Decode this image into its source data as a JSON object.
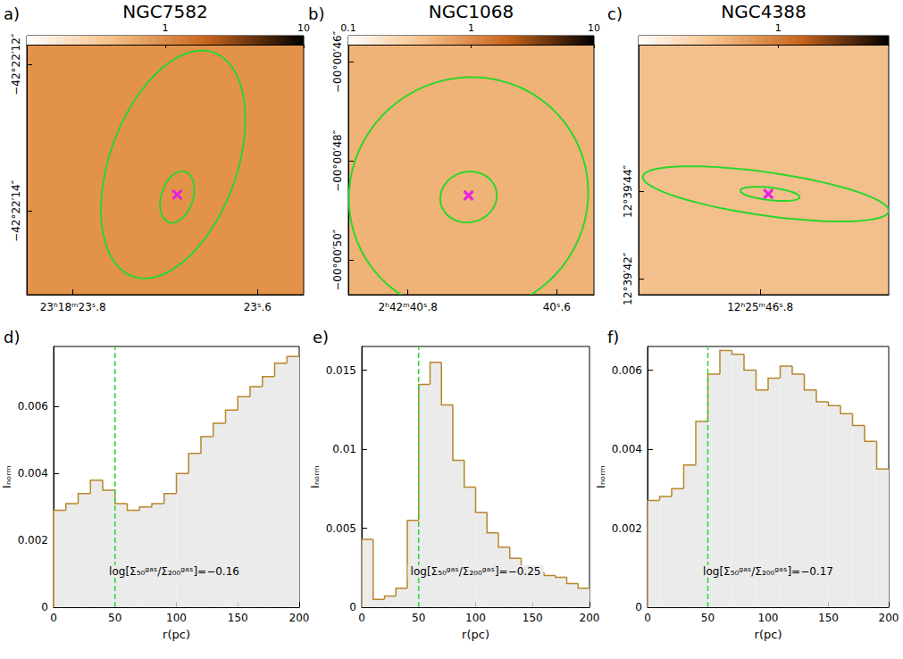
{
  "chart_data": [
    {
      "type": "image",
      "panel": "a)",
      "title": "NGC7582",
      "color": "#e3924a",
      "xlim": [
        23.85,
        23.55
      ],
      "xticks": [
        {
          "value": 23.8,
          "label": "23ʰ18ᵐ23ˢ.8"
        },
        {
          "value": 23.6,
          "label": "23ˢ.6"
        }
      ],
      "ylim": [
        -15.14,
        -11.73
      ],
      "yticks": [
        {
          "value": -14,
          "label": "−42°22′14″"
        },
        {
          "value": -12,
          "label": "−42°22′12″"
        }
      ],
      "colorbar": {
        "range": [
          0.1,
          10
        ],
        "ticks": [
          1,
          10
        ],
        "log": true
      },
      "apertures": [
        {
          "center": [
            23.6914,
            -13.3646
          ],
          "major_end": [
            23.6474,
            -11.838
          ],
          "minor_end": [
            23.6267,
            -13.657
          ]
        },
        {
          "center": [
            23.6871,
            -13.808
          ],
          "major_end": [
            23.6785,
            -13.462
          ],
          "minor_end": [
            23.6707,
            -13.873
          ]
        }
      ],
      "nucleus": [
        23.6871,
        -13.776
      ],
      "marker": "x"
    },
    {
      "type": "image",
      "panel": "b)",
      "title": "NGC1068",
      "color": "#f0b377",
      "xlim": [
        40.88,
        40.55
      ],
      "xticks": [
        {
          "value": 40.8,
          "label": "2ʰ42ᵐ40ˢ.8"
        },
        {
          "value": 40.6,
          "label": "40ˢ.6"
        }
      ],
      "ylim": [
        -50.7,
        -45.65
      ],
      "yticks": [
        {
          "value": -50,
          "label": "−00°00′50″"
        },
        {
          "value": -48,
          "label": "−00°00′48″"
        },
        {
          "value": -46,
          "label": "−00°00′46″"
        }
      ],
      "colorbar": {
        "range": [
          0.1,
          10
        ],
        "ticks": [
          0.1,
          1,
          10
        ],
        "log": true
      },
      "apertures": [
        {
          "center": [
            40.7185,
            -48.696
          ],
          "major_end": [
            40.695,
            -46.323
          ],
          "minor_end": [
            40.5594,
            -48.985
          ]
        },
        {
          "center": [
            40.7185,
            -48.728
          ],
          "major_end": [
            40.7138,
            -48.215
          ],
          "minor_end": [
            40.6808,
            -48.76
          ]
        }
      ],
      "nucleus": [
        40.7185,
        -48.696
      ],
      "marker": "x"
    },
    {
      "type": "image",
      "panel": "c)",
      "title": "NGC4388",
      "color": "#f3c08d",
      "xlim": [
        46.98,
        46.61
      ],
      "xticks": [
        {
          "value": 46.8,
          "label": "12ʰ25ᵐ46ˢ.8"
        }
      ],
      "ylim": [
        41.64,
        47.36
      ],
      "yticks": [
        {
          "value": 42,
          "label": "12°39′42″"
        },
        {
          "value": 44,
          "label": "12°39′44″"
        }
      ],
      "colorbar": {
        "range": [
          0.25,
          3
        ],
        "ticks": [
          1
        ],
        "log": true
      },
      "apertures": [
        {
          "center": [
            46.7919,
            43.946
          ],
          "major_end": [
            46.61,
            43.547
          ],
          "minor_end": [
            46.7969,
            43.456
          ]
        },
        {
          "center": [
            46.7856,
            43.946
          ],
          "major_end": [
            46.7417,
            43.873
          ],
          "minor_end": [
            46.7856,
            43.801
          ]
        }
      ],
      "nucleus": [
        46.7881,
        43.946
      ],
      "marker": "x"
    },
    {
      "type": "histogram",
      "panel": "d)",
      "xlabel": "r(pc)",
      "ylabel": "Iₙₒᵣₘ",
      "color": "#b8862b",
      "bins": [
        0,
        10,
        20,
        30,
        40,
        50,
        60,
        70,
        80,
        90,
        100,
        110,
        120,
        130,
        140,
        150,
        160,
        170,
        180,
        190,
        200
      ],
      "values": [
        0.0029,
        0.0031,
        0.0034,
        0.0038,
        0.0035,
        0.0031,
        0.0029,
        0.003,
        0.0031,
        0.0034,
        0.004,
        0.0046,
        0.0051,
        0.0055,
        0.0059,
        0.0063,
        0.0066,
        0.0069,
        0.0073,
        0.0075
      ],
      "xlim": [
        0,
        200
      ],
      "xticks": [
        0,
        50,
        100,
        150,
        200
      ],
      "ylim": [
        0,
        0.0078
      ],
      "yticks": [
        0,
        0.002,
        0.004,
        0.006
      ],
      "threshold_r": 50,
      "annotation": "log[Σ₅₀ᵍᵃˢ/Σ₂₀₀ᵍᵃˢ]=−0.16"
    },
    {
      "type": "histogram",
      "panel": "e)",
      "xlabel": "r(pc)",
      "ylabel": "Iₙₒᵣₘ",
      "color": "#b8862b",
      "bins": [
        0,
        10,
        20,
        30,
        40,
        50,
        60,
        70,
        80,
        90,
        100,
        110,
        120,
        130,
        140,
        150,
        160,
        170,
        180,
        190,
        200
      ],
      "values": [
        0.0043,
        0.0005,
        0.0007,
        0.0012,
        0.0055,
        0.0141,
        0.0155,
        0.0128,
        0.0093,
        0.0076,
        0.006,
        0.0047,
        0.0038,
        0.0031,
        0.0026,
        0.0022,
        0.002,
        0.0019,
        0.0015,
        0.0012
      ],
      "xlim": [
        0,
        200
      ],
      "xticks": [
        0,
        50,
        100,
        150,
        200
      ],
      "ylim": [
        0,
        0.0165
      ],
      "yticks": [
        0,
        0.005,
        0.01,
        0.015
      ],
      "threshold_r": 50,
      "annotation": "log[Σ₅₀ᵍᵃˢ/Σ₂₀₀ᵍᵃˢ]=−0.25"
    },
    {
      "type": "histogram",
      "panel": "f)",
      "xlabel": "r(pc)",
      "ylabel": "Iₙₒᵣₘ",
      "color": "#b8862b",
      "bins": [
        0,
        10,
        20,
        30,
        40,
        50,
        60,
        70,
        80,
        90,
        100,
        110,
        120,
        130,
        140,
        150,
        160,
        170,
        180,
        190,
        200
      ],
      "values": [
        0.0027,
        0.0028,
        0.003,
        0.0036,
        0.0047,
        0.0059,
        0.0065,
        0.0064,
        0.006,
        0.0055,
        0.0058,
        0.0061,
        0.0059,
        0.0055,
        0.0052,
        0.0051,
        0.0049,
        0.0046,
        0.0042,
        0.0035
      ],
      "xlim": [
        0,
        200
      ],
      "xticks": [
        0,
        50,
        100,
        150,
        200
      ],
      "ylim": [
        0,
        0.0066
      ],
      "yticks": [
        0,
        0.002,
        0.004,
        0.006
      ],
      "threshold_r": 50,
      "annotation": "log[Σ₅₀ᵍᵃˢ/Σ₂₀₀ᵍᵃˢ]=−0.17"
    }
  ]
}
